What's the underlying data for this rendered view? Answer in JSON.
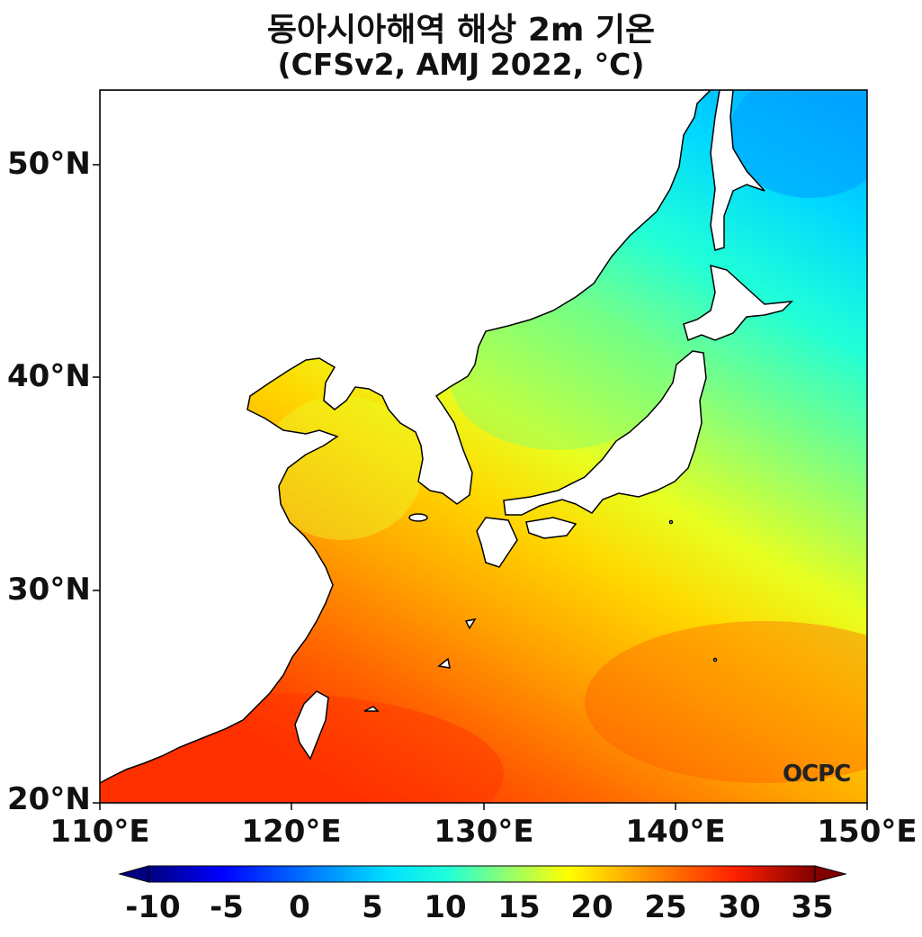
{
  "title": {
    "line1": "동아시아해역 해상 2m 기온",
    "line2": "(CFSv2, AMJ 2022, °C)"
  },
  "map": {
    "lon_range": [
      110,
      150
    ],
    "lat_range": [
      20,
      53.5
    ],
    "lat_ticks": [
      "50°N",
      "40°N",
      "30°N",
      "20°N"
    ],
    "lon_ticks": [
      "110°E",
      "120°E",
      "130°E",
      "140°E",
      "150°E"
    ],
    "land_color": "#ffffff",
    "coastline_color": "#000000"
  },
  "colorbar": {
    "min": -10,
    "max": 35,
    "ticks": [
      "-10",
      "-5",
      "0",
      "5",
      "10",
      "15",
      "20",
      "25",
      "30",
      "35"
    ],
    "colormap": "jet",
    "extend": "both"
  },
  "logo": {
    "text": "OCPC"
  }
}
